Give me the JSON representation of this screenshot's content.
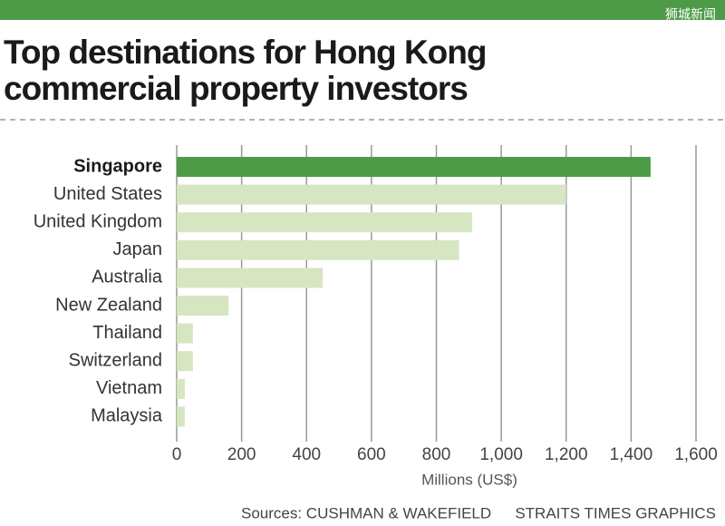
{
  "chart_data": {
    "type": "bar",
    "orientation": "horizontal",
    "watermark": "狮城新闻",
    "title": [
      "Top destinations for Hong Kong",
      "commercial property investors"
    ],
    "categories": [
      "Singapore",
      "United States",
      "United Kingdom",
      "Japan",
      "Australia",
      "New Zealand",
      "Thailand",
      "Switzerland",
      "Vietnam",
      "Malaysia"
    ],
    "values": [
      1460,
      1200,
      910,
      870,
      450,
      160,
      50,
      50,
      25,
      25
    ],
    "colors": [
      "#4e9b47",
      "#d6e6c1",
      "#d6e6c1",
      "#d6e6c1",
      "#d6e6c1",
      "#d6e6c1",
      "#d6e6c1",
      "#d6e6c1",
      "#d6e6c1",
      "#d6e6c1"
    ],
    "label_bold": [
      true,
      false,
      false,
      false,
      false,
      false,
      false,
      false,
      false,
      false
    ],
    "xlim": [
      0,
      1600
    ],
    "xticks": [
      0,
      200,
      400,
      600,
      800,
      {
        "value": 1000,
        "label": "1,000"
      },
      {
        "value": 1200,
        "label": "1,200"
      },
      {
        "value": 1400,
        "label": "1,400"
      },
      {
        "value": 1600,
        "label": "1,600"
      }
    ],
    "xlabel": "Millions (US$)",
    "grid": true,
    "source": "Sources: CUSHMAN & WAKEFIELD",
    "credit": "STRAITS TIMES GRAPHICS"
  }
}
